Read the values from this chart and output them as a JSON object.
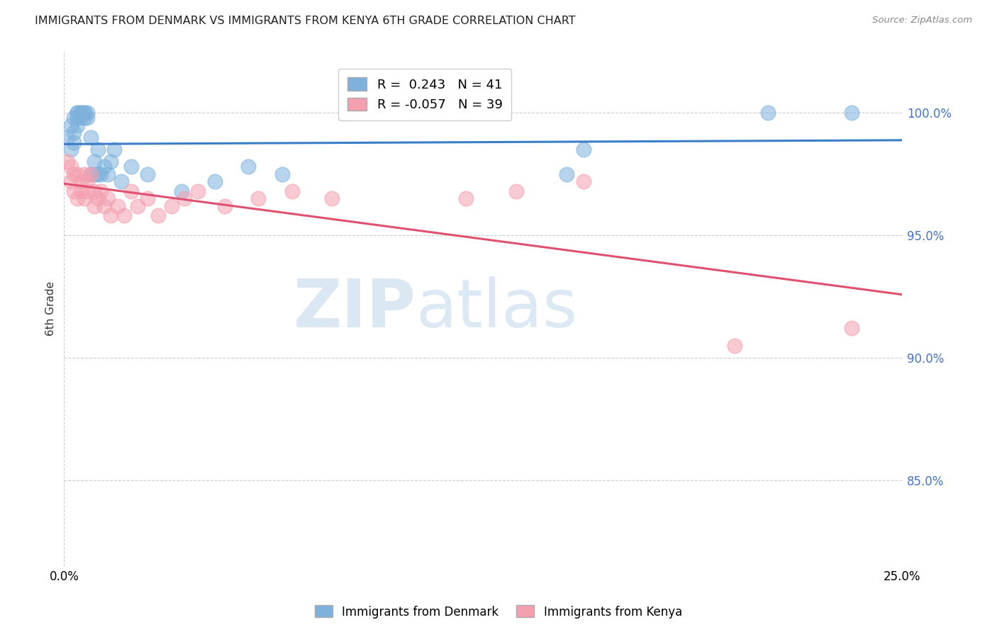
{
  "title": "IMMIGRANTS FROM DENMARK VS IMMIGRANTS FROM KENYA 6TH GRADE CORRELATION CHART",
  "source": "Source: ZipAtlas.com",
  "ylabel": "6th Grade",
  "ytick_labels": [
    "85.0%",
    "90.0%",
    "95.0%",
    "100.0%"
  ],
  "ytick_values": [
    0.85,
    0.9,
    0.95,
    1.0
  ],
  "xlim": [
    0.0,
    0.25
  ],
  "ylim": [
    0.815,
    1.025
  ],
  "legend_denmark": "Immigrants from Denmark",
  "legend_kenya": "Immigrants from Kenya",
  "R_denmark": 0.243,
  "N_denmark": 41,
  "R_kenya": -0.057,
  "N_kenya": 39,
  "color_denmark": "#7EB2DD",
  "color_kenya": "#F4A0B0",
  "trendline_color_denmark": "#3B7EC8",
  "trendline_color_kenya": "#E05070",
  "denmark_x": [
    0.001,
    0.002,
    0.002,
    0.003,
    0.003,
    0.003,
    0.004,
    0.004,
    0.004,
    0.004,
    0.005,
    0.005,
    0.005,
    0.006,
    0.006,
    0.006,
    0.007,
    0.007,
    0.008,
    0.008,
    0.009,
    0.009,
    0.01,
    0.01,
    0.011,
    0.012,
    0.013,
    0.014,
    0.015,
    0.017,
    0.02,
    0.025,
    0.035,
    0.045,
    0.055,
    0.065,
    0.09,
    0.15,
    0.155,
    0.21,
    0.235
  ],
  "denmark_y": [
    0.99,
    0.985,
    0.995,
    0.988,
    0.992,
    0.998,
    0.995,
    0.998,
    1.0,
    1.0,
    0.998,
    1.0,
    1.0,
    0.998,
    1.0,
    1.0,
    0.998,
    1.0,
    0.975,
    0.99,
    0.98,
    0.975,
    0.975,
    0.985,
    0.975,
    0.978,
    0.975,
    0.98,
    0.985,
    0.972,
    0.978,
    0.975,
    0.968,
    0.972,
    0.978,
    0.975,
    1.0,
    0.975,
    0.985,
    1.0,
    1.0
  ],
  "kenya_x": [
    0.001,
    0.002,
    0.002,
    0.003,
    0.003,
    0.004,
    0.004,
    0.005,
    0.005,
    0.006,
    0.006,
    0.007,
    0.007,
    0.008,
    0.009,
    0.009,
    0.01,
    0.011,
    0.012,
    0.013,
    0.014,
    0.016,
    0.018,
    0.02,
    0.022,
    0.025,
    0.028,
    0.032,
    0.036,
    0.04,
    0.048,
    0.058,
    0.068,
    0.08,
    0.12,
    0.135,
    0.155,
    0.2,
    0.235
  ],
  "kenya_y": [
    0.98,
    0.978,
    0.972,
    0.975,
    0.968,
    0.975,
    0.965,
    0.972,
    0.968,
    0.975,
    0.965,
    0.972,
    0.968,
    0.975,
    0.968,
    0.962,
    0.965,
    0.968,
    0.962,
    0.965,
    0.958,
    0.962,
    0.958,
    0.968,
    0.962,
    0.965,
    0.958,
    0.962,
    0.965,
    0.968,
    0.962,
    0.965,
    0.968,
    0.965,
    0.965,
    0.968,
    0.972,
    0.905,
    0.912
  ],
  "watermark_zip": "ZIP",
  "watermark_atlas": "atlas",
  "background_color": "#FFFFFF"
}
